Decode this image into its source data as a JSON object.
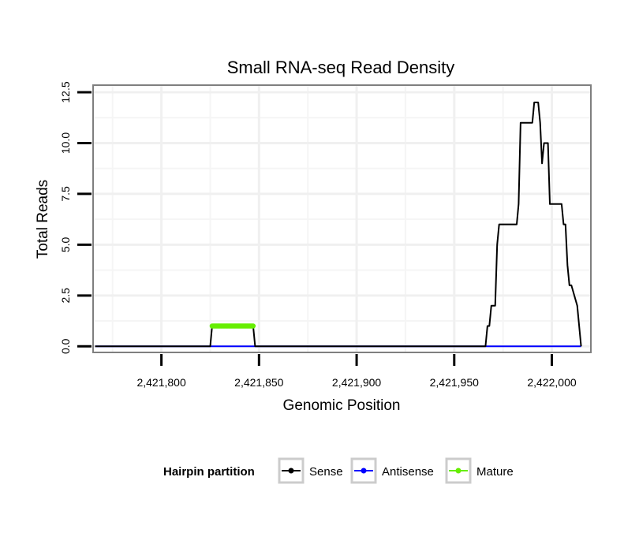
{
  "chart_data": {
    "type": "line",
    "title": "Small RNA-seq Read Density",
    "xlabel": "Genomic Position",
    "ylabel": "Total Reads",
    "xlim": [
      2421765,
      2422020
    ],
    "ylim": [
      -0.3,
      12.85
    ],
    "x_ticks": [
      2421800,
      2421850,
      2421900,
      2421950,
      2422000
    ],
    "x_tick_labels": [
      "2,421,800",
      "2,421,850",
      "2,421,900",
      "2,421,950",
      "2,422,000"
    ],
    "y_ticks": [
      0,
      2.5,
      5,
      7.5,
      10,
      12.5
    ],
    "y_tick_labels": [
      "0.0",
      "2.5",
      "5.0",
      "7.5",
      "10.0",
      "12.5"
    ],
    "grid": true,
    "legend": {
      "title": "Hairpin partition",
      "position": "bottom",
      "entries": [
        "Sense",
        "Antisense",
        "Mature"
      ]
    },
    "series": [
      {
        "name": "Sense",
        "color": "#000000",
        "x": [
          2421766,
          2421825,
          2421826,
          2421847,
          2421848,
          2421966,
          2421967,
          2421968,
          2421969,
          2421970,
          2421971,
          2421972,
          2421973,
          2421974,
          2421975,
          2421982,
          2421983,
          2421984,
          2421990,
          2421991,
          2421993,
          2421994,
          2421995,
          2421996,
          2421998,
          2421999,
          2422005,
          2422006,
          2422007,
          2422008,
          2422009,
          2422010,
          2422013,
          2422015
        ],
        "values": [
          0,
          0,
          1,
          1,
          0,
          0,
          1,
          1,
          2,
          2,
          2,
          5,
          6,
          6,
          6,
          6,
          7,
          11,
          11,
          12,
          12,
          11,
          9,
          10,
          10,
          7,
          7,
          6,
          6,
          4,
          3,
          3,
          2,
          0
        ]
      },
      {
        "name": "Antisense",
        "color": "#0000ff",
        "x": [
          2421766,
          2422015
        ],
        "values": [
          0,
          0
        ]
      },
      {
        "name": "Mature",
        "color": "#66ee00",
        "x": [
          2421826,
          2421847
        ],
        "values": [
          1,
          1
        ]
      }
    ]
  }
}
